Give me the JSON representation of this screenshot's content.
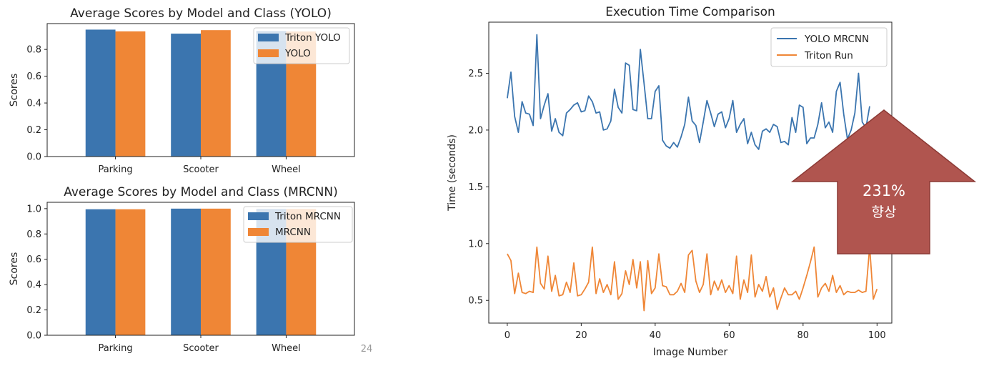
{
  "page_number": "24",
  "colors": {
    "blue": "#3b75af",
    "orange": "#ef8636",
    "arrow_fill": "#b0554f",
    "arrow_stroke": "#8c3a35",
    "arrow_text": "#ffffff"
  },
  "callout": {
    "line1": "231%",
    "line2": "향상"
  },
  "chart_data": [
    {
      "type": "bar",
      "title": "Average Scores by Model and Class (YOLO)",
      "ylabel": "Scores",
      "xlabel": "",
      "categories": [
        "Parking",
        "Scooter",
        "Wheel"
      ],
      "ylim": [
        0,
        0.993
      ],
      "yticks": [
        0.0,
        0.2,
        0.4,
        0.6,
        0.8
      ],
      "ytick_labels": [
        "0.0",
        "0.2",
        "0.4",
        "0.6",
        "0.8"
      ],
      "legend_position": "upper right",
      "series": [
        {
          "name": "Triton YOLO",
          "color": "#3b75af",
          "values": [
            0.948,
            0.918,
            0.938
          ]
        },
        {
          "name": "YOLO",
          "color": "#ef8636",
          "values": [
            0.935,
            0.944,
            0.934
          ]
        }
      ]
    },
    {
      "type": "bar",
      "title": "Average Scores by Model and Class (MRCNN)",
      "ylabel": "Scores",
      "xlabel": "",
      "categories": [
        "Parking",
        "Scooter",
        "Wheel"
      ],
      "ylim": [
        0,
        1.05
      ],
      "yticks": [
        0.0,
        0.2,
        0.4,
        0.6,
        0.8,
        1.0
      ],
      "ytick_labels": [
        "0.0",
        "0.2",
        "0.4",
        "0.6",
        "0.8",
        "1.0"
      ],
      "legend_position": "upper right",
      "series": [
        {
          "name": "Triton MRCNN",
          "color": "#3b75af",
          "values": [
            0.995,
            1.0,
            0.998
          ]
        },
        {
          "name": "MRCNN",
          "color": "#ef8636",
          "values": [
            0.995,
            1.0,
            0.998
          ]
        }
      ]
    },
    {
      "type": "line",
      "title": "Execution Time Comparison",
      "xlabel": "Image Number",
      "ylabel": "Time (seconds)",
      "xlim": [
        -5,
        104
      ],
      "ylim": [
        0.3,
        2.95
      ],
      "xticks": [
        0,
        20,
        40,
        60,
        80,
        100
      ],
      "xtick_labels": [
        "0",
        "20",
        "40",
        "60",
        "80",
        "100"
      ],
      "yticks": [
        0.5,
        1.0,
        1.5,
        2.0,
        2.5
      ],
      "ytick_labels": [
        "0.5",
        "1.0",
        "1.5",
        "2.0",
        "2.5"
      ],
      "legend_position": "upper right",
      "series": [
        {
          "name": "YOLO MRCNN",
          "color": "#3b75af",
          "values": [
            2.28,
            2.51,
            2.12,
            1.98,
            2.25,
            2.15,
            2.14,
            2.04,
            2.84,
            2.1,
            2.22,
            2.32,
            1.99,
            2.1,
            1.98,
            1.95,
            2.15,
            2.18,
            2.22,
            2.24,
            2.16,
            2.17,
            2.3,
            2.25,
            2.15,
            2.16,
            2.0,
            2.01,
            2.08,
            2.36,
            2.2,
            2.15,
            2.59,
            2.57,
            2.18,
            2.17,
            2.71,
            2.41,
            2.1,
            2.1,
            2.34,
            2.39,
            1.91,
            1.86,
            1.84,
            1.89,
            1.85,
            1.94,
            2.05,
            2.29,
            2.08,
            2.04,
            1.89,
            2.07,
            2.26,
            2.15,
            2.03,
            2.14,
            2.16,
            2.02,
            2.1,
            2.26,
            1.98,
            2.05,
            2.1,
            1.88,
            1.98,
            1.87,
            1.83,
            1.99,
            2.01,
            1.98,
            2.05,
            2.03,
            1.89,
            1.9,
            1.87,
            2.11,
            1.98,
            2.22,
            2.2,
            1.88,
            1.93,
            1.93,
            2.05,
            2.24,
            2.02,
            2.07,
            1.98,
            2.34,
            2.42,
            2.14,
            1.92,
            2.0,
            2.15,
            2.5,
            2.07,
            2.02,
            2.21
          ]
        },
        {
          "name": "Triton Run",
          "color": "#ef8636",
          "values": [
            0.91,
            0.85,
            0.56,
            0.74,
            0.57,
            0.56,
            0.58,
            0.57,
            0.97,
            0.65,
            0.6,
            0.89,
            0.58,
            0.72,
            0.54,
            0.55,
            0.66,
            0.57,
            0.83,
            0.54,
            0.55,
            0.6,
            0.66,
            0.97,
            0.56,
            0.69,
            0.57,
            0.64,
            0.55,
            0.84,
            0.51,
            0.56,
            0.76,
            0.64,
            0.86,
            0.61,
            0.84,
            0.41,
            0.85,
            0.56,
            0.61,
            0.91,
            0.63,
            0.62,
            0.55,
            0.55,
            0.58,
            0.65,
            0.57,
            0.9,
            0.94,
            0.67,
            0.57,
            0.64,
            0.91,
            0.55,
            0.67,
            0.59,
            0.68,
            0.57,
            0.63,
            0.56,
            0.89,
            0.51,
            0.68,
            0.57,
            0.9,
            0.53,
            0.64,
            0.58,
            0.71,
            0.53,
            0.61,
            0.42,
            0.52,
            0.61,
            0.55,
            0.55,
            0.58,
            0.51,
            0.61,
            0.72,
            0.84,
            0.97,
            0.53,
            0.61,
            0.65,
            0.58,
            0.72,
            0.57,
            0.63,
            0.55,
            0.58,
            0.57,
            0.57,
            0.59,
            0.57,
            0.58,
            0.97,
            0.51,
            0.6
          ]
        }
      ]
    }
  ]
}
